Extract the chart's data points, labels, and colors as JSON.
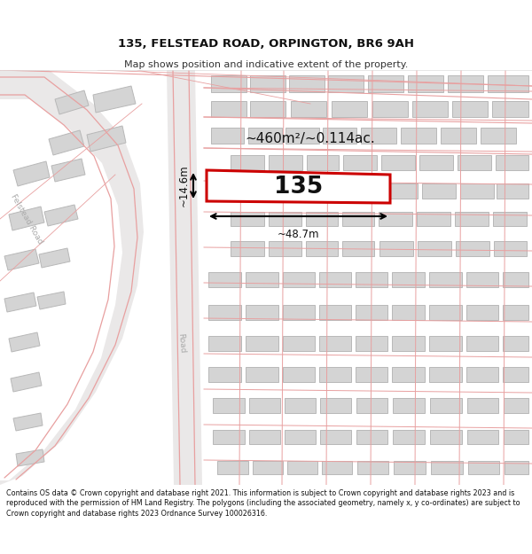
{
  "title": "135, FELSTEAD ROAD, ORPINGTON, BR6 9AH",
  "subtitle": "Map shows position and indicative extent of the property.",
  "footer": "Contains OS data © Crown copyright and database right 2021. This information is subject to Crown copyright and database rights 2023 and is reproduced with the permission of HM Land Registry. The polygons (including the associated geometry, namely x, y co-ordinates) are subject to Crown copyright and database rights 2023 Ordnance Survey 100026316.",
  "area_label": "~460m²/~0.114ac.",
  "width_label": "~48.7m",
  "height_label": "~14.6m",
  "house_number": "135",
  "road_label": "Felstead Road",
  "road_label2": "Road",
  "map_bg": "#f2f0f0",
  "building_fill": "#d4d4d4",
  "building_edge": "#b8b8b8",
  "highlight_fill": "#ffffff",
  "highlight_edge": "#cc0000",
  "road_line_color": "#e8a0a0",
  "road_fill": "#eae8e8"
}
